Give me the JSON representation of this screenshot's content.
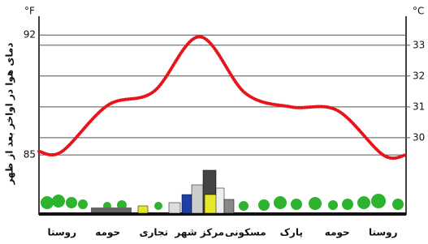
{
  "chart_data": {
    "type": "line",
    "y_label": "دمای هوا در اواخر بعد از ظهر",
    "y_unit": "°F",
    "y2_unit": "°C",
    "categories": [
      "روستا",
      "حومه",
      "تجاری",
      "مرکز شهر",
      "مسکونی",
      "پارک",
      "حومه",
      "روستا"
    ],
    "series": [
      {
        "color": "#e8141c",
        "values": [
          85.2,
          87.9,
          88.7,
          91.9,
          88.6,
          87.8,
          87.6,
          85.0
        ]
      }
    ],
    "ylim": [
      81.5,
      93.1
    ],
    "yticks": [
      85,
      92
    ],
    "y2lim": [
      27.5,
      33.94
    ],
    "y2ticks": [
      30,
      31,
      32,
      33
    ],
    "grid": true
  }
}
